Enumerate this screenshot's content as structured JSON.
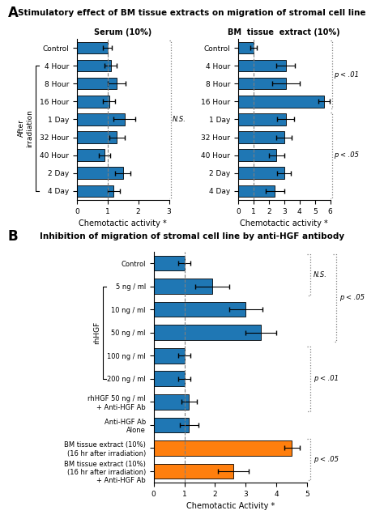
{
  "panels": [
    {
      "label": "A",
      "title": "Stimulatory effect of BM tissue extracts on migration of stromal cell line"
    },
    {
      "label": "B",
      "title": "Inhibition of migration of stromal cell line by anti-HGF antibody"
    }
  ],
  "chart_data": [
    {
      "type": "bar",
      "orientation": "horizontal",
      "panel": "A",
      "title": "Serum (10%)",
      "x_label": "Chemotactic activity *",
      "categories": [
        "Control",
        "4 Hour",
        "8 Hour",
        "16 Hour",
        "1 Day",
        "32 Hour",
        "40 Hour",
        "2 Day",
        "4 Day"
      ],
      "values": [
        1.0,
        1.1,
        1.3,
        1.05,
        1.55,
        1.3,
        0.9,
        1.5,
        1.2
      ],
      "errors": [
        0.15,
        0.2,
        0.3,
        0.2,
        0.35,
        0.25,
        0.18,
        0.25,
        0.2
      ],
      "color": "#1f77b4",
      "xlim": [
        0,
        3
      ],
      "xticks": [
        0,
        1,
        2,
        3
      ],
      "ref_line": 1.0,
      "annotations": [
        {
          "text": "N.S.",
          "from": "Control",
          "to": "4 Day"
        }
      ],
      "group_labels": [
        {
          "text": "After\nirradiation",
          "from": "4 Hour",
          "to": "4 Day"
        }
      ]
    },
    {
      "type": "bar",
      "orientation": "horizontal",
      "panel": "A",
      "title": "BM  tissue  extract (10%)",
      "x_label": "Chemotactic activity *",
      "categories": [
        "Control",
        "4 Hour",
        "8 Hour",
        "16 Hour",
        "1 Day",
        "32 Hour",
        "40 Hour",
        "2 Day",
        "4 Day"
      ],
      "values": [
        1.0,
        3.1,
        3.1,
        5.6,
        3.1,
        3.0,
        2.5,
        3.0,
        2.4
      ],
      "errors": [
        0.2,
        0.6,
        0.9,
        0.35,
        0.55,
        0.5,
        0.5,
        0.45,
        0.6
      ],
      "color": "#1f77b4",
      "xlim": [
        0,
        6
      ],
      "xticks": [
        0,
        1,
        2,
        3,
        4,
        5,
        6
      ],
      "ref_line": 1.0,
      "annotations": [
        {
          "text": "p < .01",
          "from": "Control",
          "to": "16 Hour"
        },
        {
          "text": "p < .05",
          "from": "1 Day",
          "to": "4 Day"
        }
      ]
    },
    {
      "type": "bar",
      "orientation": "horizontal",
      "panel": "B",
      "x_label": "Chemotactic Activity *",
      "categories": [
        "Control",
        "5 ng / ml",
        "10 ng / ml",
        "50 ng / ml",
        "100 ng / ml",
        "200 ng / ml",
        "rhHGF 50 ng / ml\n+ Anti-HGF Ab",
        "Anti-HGF Ab\nAlone",
        "BM tissue extract (10%)\n(16 hr after irradiation)",
        "BM tissue extract (10%)\n(16 hr after irradiation)\n+ Anti-HGF Ab"
      ],
      "values": [
        1.0,
        1.9,
        3.0,
        3.5,
        1.0,
        1.0,
        1.15,
        1.15,
        4.5,
        2.6
      ],
      "errors": [
        0.2,
        0.55,
        0.55,
        0.5,
        0.2,
        0.2,
        0.25,
        0.3,
        0.25,
        0.5
      ],
      "colors": [
        "#1f77b4",
        "#1f77b4",
        "#1f77b4",
        "#1f77b4",
        "#1f77b4",
        "#1f77b4",
        "#1f77b4",
        "#1f77b4",
        "#ff7f0e",
        "#ff7f0e"
      ],
      "xlim": [
        0,
        5
      ],
      "xticks": [
        0,
        1,
        2,
        3,
        4,
        5
      ],
      "ref_line": 1.0,
      "annotations": [
        {
          "text": "N.S.",
          "from": "Control",
          "to": "5 ng / ml"
        },
        {
          "text": "p < .05",
          "from": "Control",
          "to": "50 ng / ml"
        },
        {
          "text": "p < .01",
          "from": "100 ng / ml",
          "to": "rhHGF 50 ng / ml\n+ Anti-HGF Ab"
        },
        {
          "text": "p < .05",
          "from": "BM tissue extract (10%)\n(16 hr after irradiation)",
          "to": "BM tissue extract (10%)\n(16 hr after irradiation)\n+ Anti-HGF Ab"
        }
      ],
      "group_labels": [
        {
          "text": "rhHGF",
          "from": "5 ng / ml",
          "to": "200 ng / ml"
        }
      ]
    }
  ]
}
